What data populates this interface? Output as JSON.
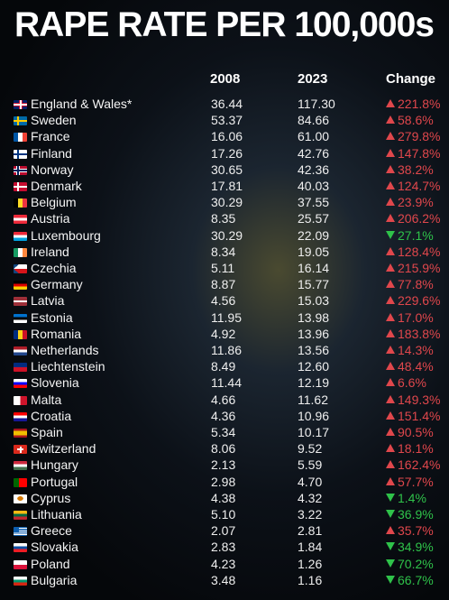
{
  "title": "RAPE RATE PER 100,000s",
  "columns": {
    "c2008": "2008",
    "c2023": "2023",
    "change": "Change"
  },
  "colors": {
    "up": "#e0474c",
    "down": "#2fc24a"
  },
  "chart_data": {
    "type": "table",
    "title": "RAPE RATE PER 100,000s",
    "headers": [
      "2008",
      "2023",
      "Change"
    ],
    "rows": [
      {
        "country": "England & Wales*",
        "flag": "uk-flag",
        "v2008": "36.44",
        "v2023": "117.30",
        "change": "221.8%",
        "dir": "up"
      },
      {
        "country": "Sweden",
        "flag": "sweden-flag",
        "v2008": "53.37",
        "v2023": "84.66",
        "change": "58.6%",
        "dir": "up"
      },
      {
        "country": "France",
        "flag": "france-flag",
        "v2008": "16.06",
        "v2023": "61.00",
        "change": "279.8%",
        "dir": "up"
      },
      {
        "country": "Finland",
        "flag": "finland-flag",
        "v2008": "17.26",
        "v2023": "42.76",
        "change": "147.8%",
        "dir": "up"
      },
      {
        "country": "Norway",
        "flag": "norway-flag",
        "v2008": "30.65",
        "v2023": "42.36",
        "change": "38.2%",
        "dir": "up"
      },
      {
        "country": "Denmark",
        "flag": "denmark-flag",
        "v2008": "17.81",
        "v2023": "40.03",
        "change": "124.7%",
        "dir": "up"
      },
      {
        "country": "Belgium",
        "flag": "belgium-flag",
        "v2008": "30.29",
        "v2023": "37.55",
        "change": "23.9%",
        "dir": "up"
      },
      {
        "country": "Austria",
        "flag": "austria-flag",
        "v2008": "8.35",
        "v2023": "25.57",
        "change": "206.2%",
        "dir": "up"
      },
      {
        "country": "Luxembourg",
        "flag": "luxembourg-flag",
        "v2008": "30.29",
        "v2023": "22.09",
        "change": "27.1%",
        "dir": "down"
      },
      {
        "country": "Ireland",
        "flag": "ireland-flag",
        "v2008": "8.34",
        "v2023": "19.05",
        "change": "128.4%",
        "dir": "up"
      },
      {
        "country": "Czechia",
        "flag": "czechia-flag",
        "v2008": "5.11",
        "v2023": "16.14",
        "change": "215.9%",
        "dir": "up"
      },
      {
        "country": "Germany",
        "flag": "germany-flag",
        "v2008": "8.87",
        "v2023": "15.77",
        "change": "77.8%",
        "dir": "up"
      },
      {
        "country": "Latvia",
        "flag": "latvia-flag",
        "v2008": "4.56",
        "v2023": "15.03",
        "change": "229.6%",
        "dir": "up"
      },
      {
        "country": "Estonia",
        "flag": "estonia-flag",
        "v2008": "11.95",
        "v2023": "13.98",
        "change": "17.0%",
        "dir": "up"
      },
      {
        "country": "Romania",
        "flag": "romania-flag",
        "v2008": "4.92",
        "v2023": "13.96",
        "change": "183.8%",
        "dir": "up"
      },
      {
        "country": "Netherlands",
        "flag": "netherlands-flag",
        "v2008": "11.86",
        "v2023": "13.56",
        "change": "14.3%",
        "dir": "up"
      },
      {
        "country": "Liechtenstein",
        "flag": "liechtenstein-flag",
        "v2008": "8.49",
        "v2023": "12.60",
        "change": "48.4%",
        "dir": "up"
      },
      {
        "country": "Slovenia",
        "flag": "slovenia-flag",
        "v2008": "11.44",
        "v2023": "12.19",
        "change": "6.6%",
        "dir": "up"
      },
      {
        "country": "Malta",
        "flag": "malta-flag",
        "v2008": "4.66",
        "v2023": "11.62",
        "change": "149.3%",
        "dir": "up"
      },
      {
        "country": "Croatia",
        "flag": "croatia-flag",
        "v2008": "4.36",
        "v2023": "10.96",
        "change": "151.4%",
        "dir": "up"
      },
      {
        "country": "Spain",
        "flag": "spain-flag",
        "v2008": "5.34",
        "v2023": "10.17",
        "change": "90.5%",
        "dir": "up"
      },
      {
        "country": "Switzerland",
        "flag": "switzerland-flag",
        "v2008": "8.06",
        "v2023": "9.52",
        "change": "18.1%",
        "dir": "up"
      },
      {
        "country": "Hungary",
        "flag": "hungary-flag",
        "v2008": "2.13",
        "v2023": "5.59",
        "change": "162.4%",
        "dir": "up"
      },
      {
        "country": "Portugal",
        "flag": "portugal-flag",
        "v2008": "2.98",
        "v2023": "4.70",
        "change": "57.7%",
        "dir": "up"
      },
      {
        "country": "Cyprus",
        "flag": "cyprus-flag",
        "v2008": "4.38",
        "v2023": "4.32",
        "change": "1.4%",
        "dir": "down"
      },
      {
        "country": "Lithuania",
        "flag": "lithuania-flag",
        "v2008": "5.10",
        "v2023": "3.22",
        "change": "36.9%",
        "dir": "down"
      },
      {
        "country": "Greece",
        "flag": "greece-flag",
        "v2008": "2.07",
        "v2023": "2.81",
        "change": "35.7%",
        "dir": "up"
      },
      {
        "country": "Slovakia",
        "flag": "slovakia-flag",
        "v2008": "2.83",
        "v2023": "1.84",
        "change": "34.9%",
        "dir": "down"
      },
      {
        "country": "Poland",
        "flag": "poland-flag",
        "v2008": "4.23",
        "v2023": "1.26",
        "change": "70.2%",
        "dir": "down"
      },
      {
        "country": "Bulgaria",
        "flag": "bulgaria-flag",
        "v2008": "3.48",
        "v2023": "1.16",
        "change": "66.7%",
        "dir": "down"
      }
    ]
  }
}
